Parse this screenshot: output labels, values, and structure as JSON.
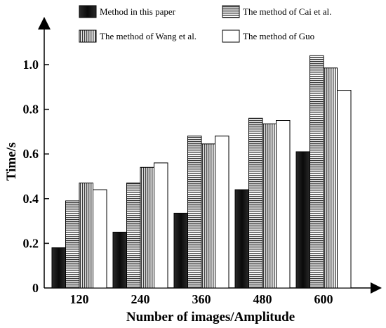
{
  "chart_data": {
    "type": "bar",
    "title": "",
    "xlabel": "Number of images/Amplitude",
    "ylabel": "Time/s",
    "categories": [
      "120",
      "240",
      "360",
      "480",
      "600"
    ],
    "ylim": [
      0,
      1.1
    ],
    "yticks": [
      0,
      0.2,
      0.4,
      0.6,
      0.8,
      1.0
    ],
    "ytick_labels": [
      "0",
      "0.2",
      "0.4",
      "0.6",
      "0.8",
      "1.0"
    ],
    "grid": false,
    "legend_position": "top",
    "series": [
      {
        "name": "Method in this paper",
        "pattern": "solid-dark",
        "values": [
          0.18,
          0.25,
          0.335,
          0.44,
          0.61
        ]
      },
      {
        "name": "The method of Cai et al.",
        "pattern": "horizontal-lines",
        "values": [
          0.39,
          0.47,
          0.68,
          0.76,
          1.04
        ]
      },
      {
        "name": "The method of Wang et al.",
        "pattern": "vertical-lines",
        "values": [
          0.47,
          0.54,
          0.645,
          0.735,
          0.985
        ]
      },
      {
        "name": "The method of Guo",
        "pattern": "white",
        "values": [
          0.44,
          0.56,
          0.68,
          0.75,
          0.885
        ]
      }
    ]
  }
}
